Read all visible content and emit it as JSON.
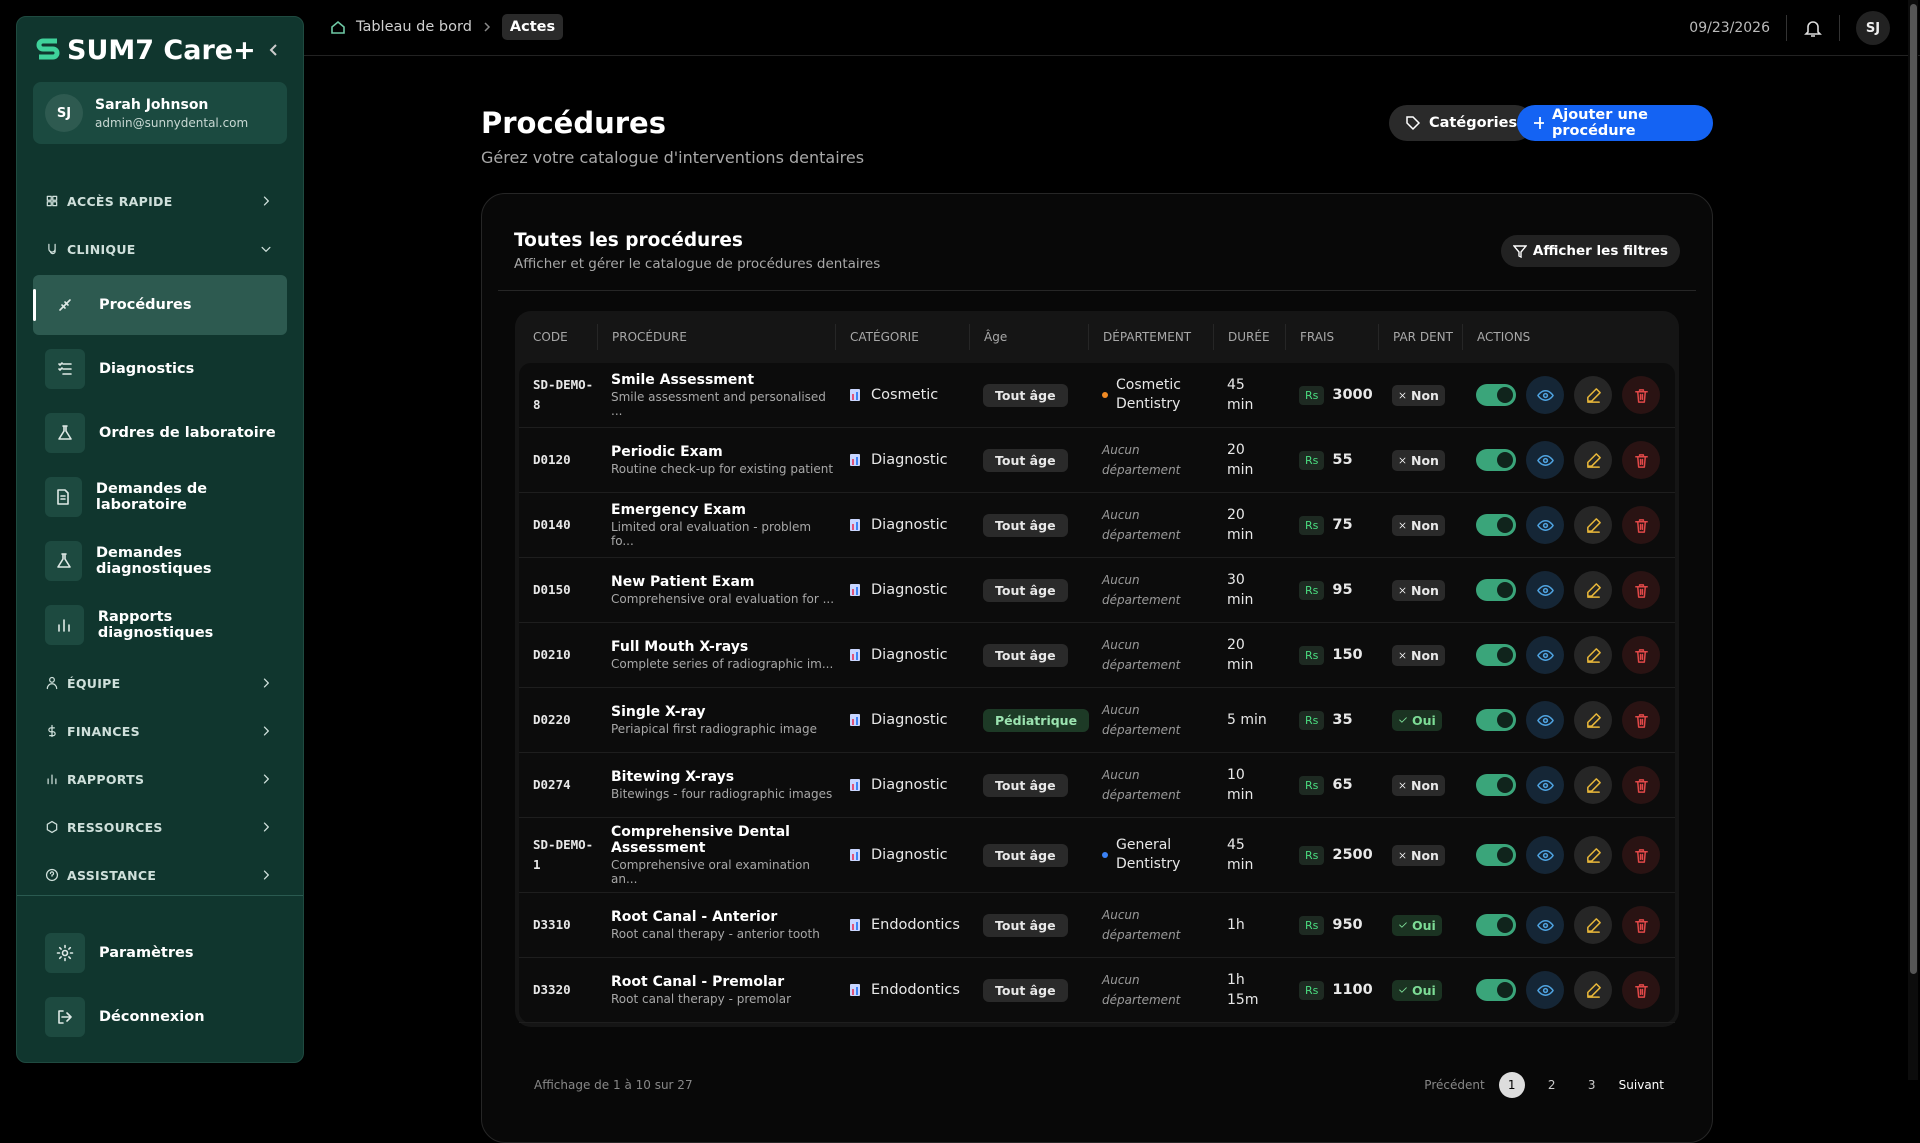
{
  "sidebar": {
    "brand": "SUM7 Care+",
    "user": {
      "initials": "SJ",
      "name": "Sarah Johnson",
      "email": "admin@sunnydental.com"
    },
    "nav": [
      {
        "label": "ACCÈS RAPIDE"
      },
      {
        "label": "CLINIQUE",
        "items": [
          "Procédures",
          "Diagnostics",
          "Ordres de laboratoire",
          "Demandes de laboratoire",
          "Demandes diagnostiques",
          "Rapports diagnostiques"
        ]
      },
      {
        "label": "ÉQUIPE"
      },
      {
        "label": "FINANCES"
      },
      {
        "label": "RAPPORTS"
      },
      {
        "label": "RESSOURCES"
      },
      {
        "label": "ASSISTANCE"
      }
    ],
    "footer": [
      "Paramètres",
      "Déconnexion"
    ]
  },
  "topbar": {
    "breadcrumb": [
      "Tableau de bord",
      "Actes"
    ],
    "date": "09/23/2026",
    "avatar": "SJ"
  },
  "header": {
    "title": "Procédures",
    "subtitle": "Gérez votre catalogue d'interventions dentaires",
    "buttons": [
      "Catégories",
      "Ajouter une procédure"
    ]
  },
  "card": {
    "title": "Toutes les procédures",
    "subtitle": "Afficher et gérer le catalogue de procédures dentaires",
    "filter_button": "Afficher les filtres"
  },
  "table": {
    "columns": [
      "CODE",
      "PROCÉDURE",
      "CATÉGORIE",
      "Âge",
      "DÉPARTEMENT",
      "DURÉE",
      "FRAIS",
      "PAR DENT",
      "ACTIONS"
    ],
    "currency": "Rs",
    "rows": [
      {
        "code": "SD-DEMO-8",
        "name": "Smile Assessment",
        "description": "Smile assessment and personalised ...",
        "category": "Cosmetic",
        "age": "Tout âge",
        "department": "Cosmetic Dentistry",
        "dot": "#f08a24",
        "duration": "45 min",
        "fee": 3000,
        "per_tooth": "Non"
      },
      {
        "code": "D0120",
        "name": "Periodic Exam",
        "description": "Routine check-up for existing patient",
        "category": "Diagnostic",
        "age": "Tout âge",
        "department": "Aucun département",
        "duration": "20 min",
        "fee": 55,
        "per_tooth": "Non"
      },
      {
        "code": "D0140",
        "name": "Emergency Exam",
        "description": "Limited oral evaluation - problem fo...",
        "category": "Diagnostic",
        "age": "Tout âge",
        "department": "Aucun département",
        "duration": "20 min",
        "fee": 75,
        "per_tooth": "Non"
      },
      {
        "code": "D0150",
        "name": "New Patient Exam",
        "description": "Comprehensive oral evaluation for ...",
        "category": "Diagnostic",
        "age": "Tout âge",
        "department": "Aucun département",
        "duration": "30 min",
        "fee": 95,
        "per_tooth": "Non"
      },
      {
        "code": "D0210",
        "name": "Full Mouth X-rays",
        "description": "Complete series of radiographic im...",
        "category": "Diagnostic",
        "age": "Tout âge",
        "department": "Aucun département",
        "duration": "20 min",
        "fee": 150,
        "per_tooth": "Non"
      },
      {
        "code": "D0220",
        "name": "Single X-ray",
        "description": "Periapical first radiographic image",
        "category": "Diagnostic",
        "age": "Pédiatrique",
        "age_color": "#1d3a26",
        "department": "Aucun département",
        "duration": "5 min",
        "fee": 35,
        "per_tooth": "Oui",
        "tooth_color": "#1b3322"
      },
      {
        "code": "D0274",
        "name": "Bitewing X-rays",
        "description": "Bitewings - four radiographic images",
        "category": "Diagnostic",
        "age": "Tout âge",
        "department": "Aucun département",
        "duration": "10 min",
        "fee": 65,
        "per_tooth": "Non"
      },
      {
        "code": "SD-DEMO-1",
        "name": "Comprehensive Dental Assessment",
        "description": "Comprehensive oral examination an...",
        "category": "Diagnostic",
        "age": "Tout âge",
        "department": "General Dentistry",
        "dot": "#3b82f6",
        "duration": "45 min",
        "fee": 2500,
        "per_tooth": "Non"
      },
      {
        "code": "D3310",
        "name": "Root Canal - Anterior",
        "description": "Root canal therapy - anterior tooth",
        "category": "Endodontics",
        "age": "Tout âge",
        "department": "Aucun département",
        "duration": "1h",
        "fee": 950,
        "per_tooth": "Oui",
        "tooth_color": "#1b3322"
      },
      {
        "code": "D3320",
        "name": "Root Canal - Premolar",
        "description": "Root canal therapy - premolar",
        "category": "Endodontics",
        "age": "Tout âge",
        "department": "Aucun département",
        "duration": "1h 15m",
        "fee": 1100,
        "per_tooth": "Oui",
        "tooth_color": "#1b3322"
      }
    ]
  },
  "pagination": {
    "summary": "Affichage de 1 à 10 sur 27",
    "previous": "Précédent",
    "pages": [
      "1",
      "2",
      "3"
    ],
    "next": "Suivant"
  }
}
